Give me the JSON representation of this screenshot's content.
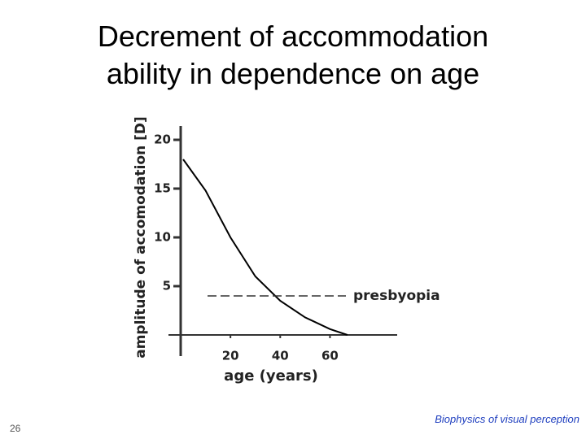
{
  "chart_data": {
    "type": "line",
    "title": "Decrement of accommodation ability in dependence on age",
    "x_label": "age (years)",
    "y_label": "amplitude of accomodation [D]",
    "x": [
      1,
      10,
      20,
      30,
      40,
      50,
      60,
      67
    ],
    "series": [
      {
        "name": "accommodation",
        "color": "#000000",
        "values": [
          18,
          14.8,
          10,
          6,
          3.5,
          1.8,
          0.6,
          0
        ]
      }
    ],
    "xlim": [
      0,
      87
    ],
    "ylim": [
      0,
      21
    ],
    "xticks": [
      20,
      40,
      60
    ],
    "yticks": [
      5,
      10,
      15,
      20
    ],
    "reference_line": {
      "label": "presbyopia",
      "value": 4
    }
  },
  "footer": {
    "page_number": "26",
    "course": "Biophysics of visual perception"
  }
}
